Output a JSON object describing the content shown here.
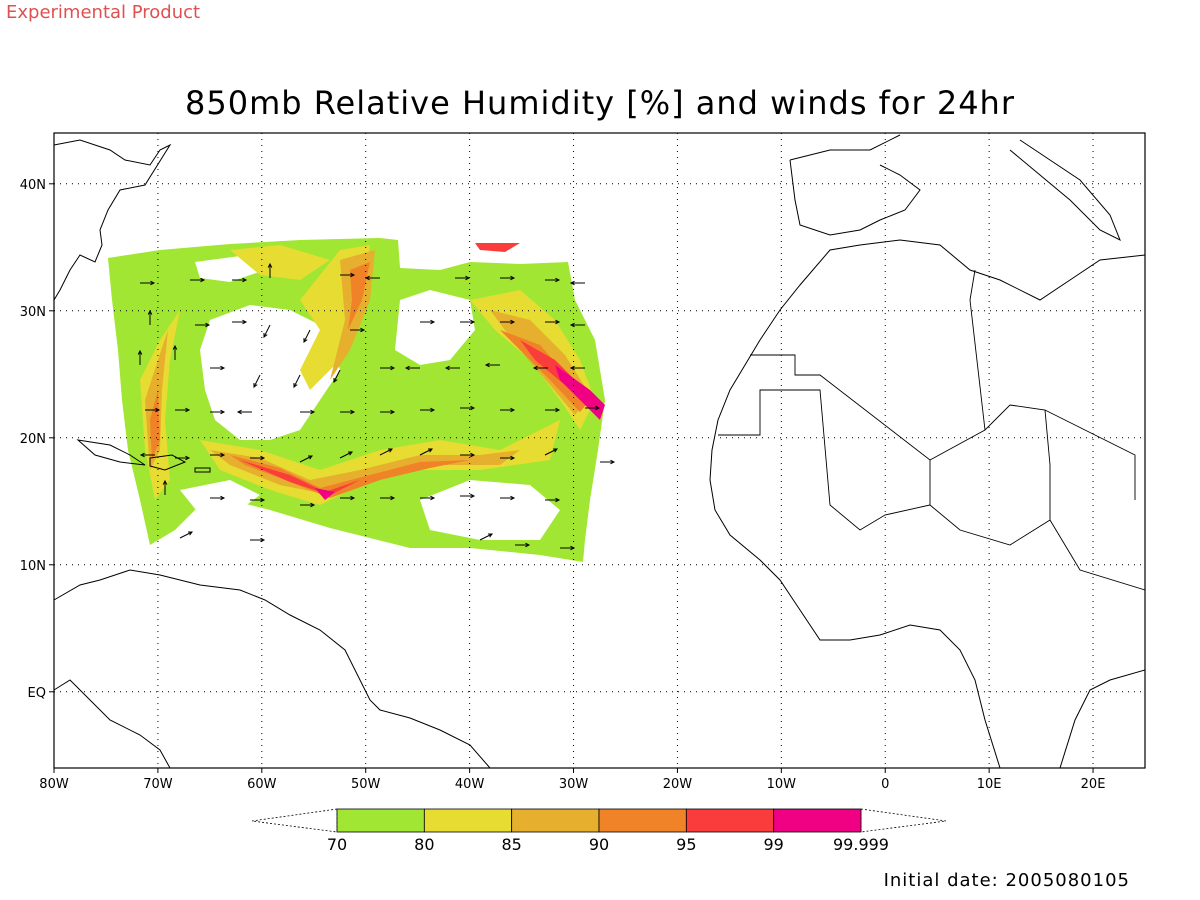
{
  "header": {
    "product_note": "Experimental Product",
    "title": "850mb Relative Humidity [%] and winds for 24hr"
  },
  "footer": {
    "initial_date": "Initial date: 2005080105"
  },
  "map": {
    "lon_range": [
      -80,
      25
    ],
    "lat_range": [
      -6,
      44
    ],
    "x_ticks": [
      {
        "value": -80,
        "label": "80W"
      },
      {
        "value": -70,
        "label": "70W"
      },
      {
        "value": -60,
        "label": "60W"
      },
      {
        "value": -50,
        "label": "50W"
      },
      {
        "value": -40,
        "label": "40W"
      },
      {
        "value": -30,
        "label": "30W"
      },
      {
        "value": -20,
        "label": "20W"
      },
      {
        "value": -10,
        "label": "10W"
      },
      {
        "value": 0,
        "label": "0"
      },
      {
        "value": 10,
        "label": "10E"
      },
      {
        "value": 20,
        "label": "20E"
      }
    ],
    "y_ticks": [
      {
        "value": 40,
        "label": "40N"
      },
      {
        "value": 30,
        "label": "30N"
      },
      {
        "value": 20,
        "label": "20N"
      },
      {
        "value": 10,
        "label": "10N"
      },
      {
        "value": 0,
        "label": "EQ"
      }
    ],
    "grid": true,
    "grid_style": "dotted"
  },
  "colorbar": {
    "levels": [
      "70",
      "80",
      "85",
      "90",
      "95",
      "99",
      "99.999"
    ],
    "colors": [
      "#a0e632",
      "#e6dc32",
      "#e6af2d",
      "#f08228",
      "#fa3c3c",
      "#f00082"
    ]
  },
  "colors": {
    "rh_70": "#a0e632",
    "rh_80": "#e6dc32",
    "rh_85": "#e6af2d",
    "rh_90": "#f08228",
    "rh_95": "#fa3c3c",
    "rh_99": "#f00082",
    "product_note": "#e05050"
  }
}
